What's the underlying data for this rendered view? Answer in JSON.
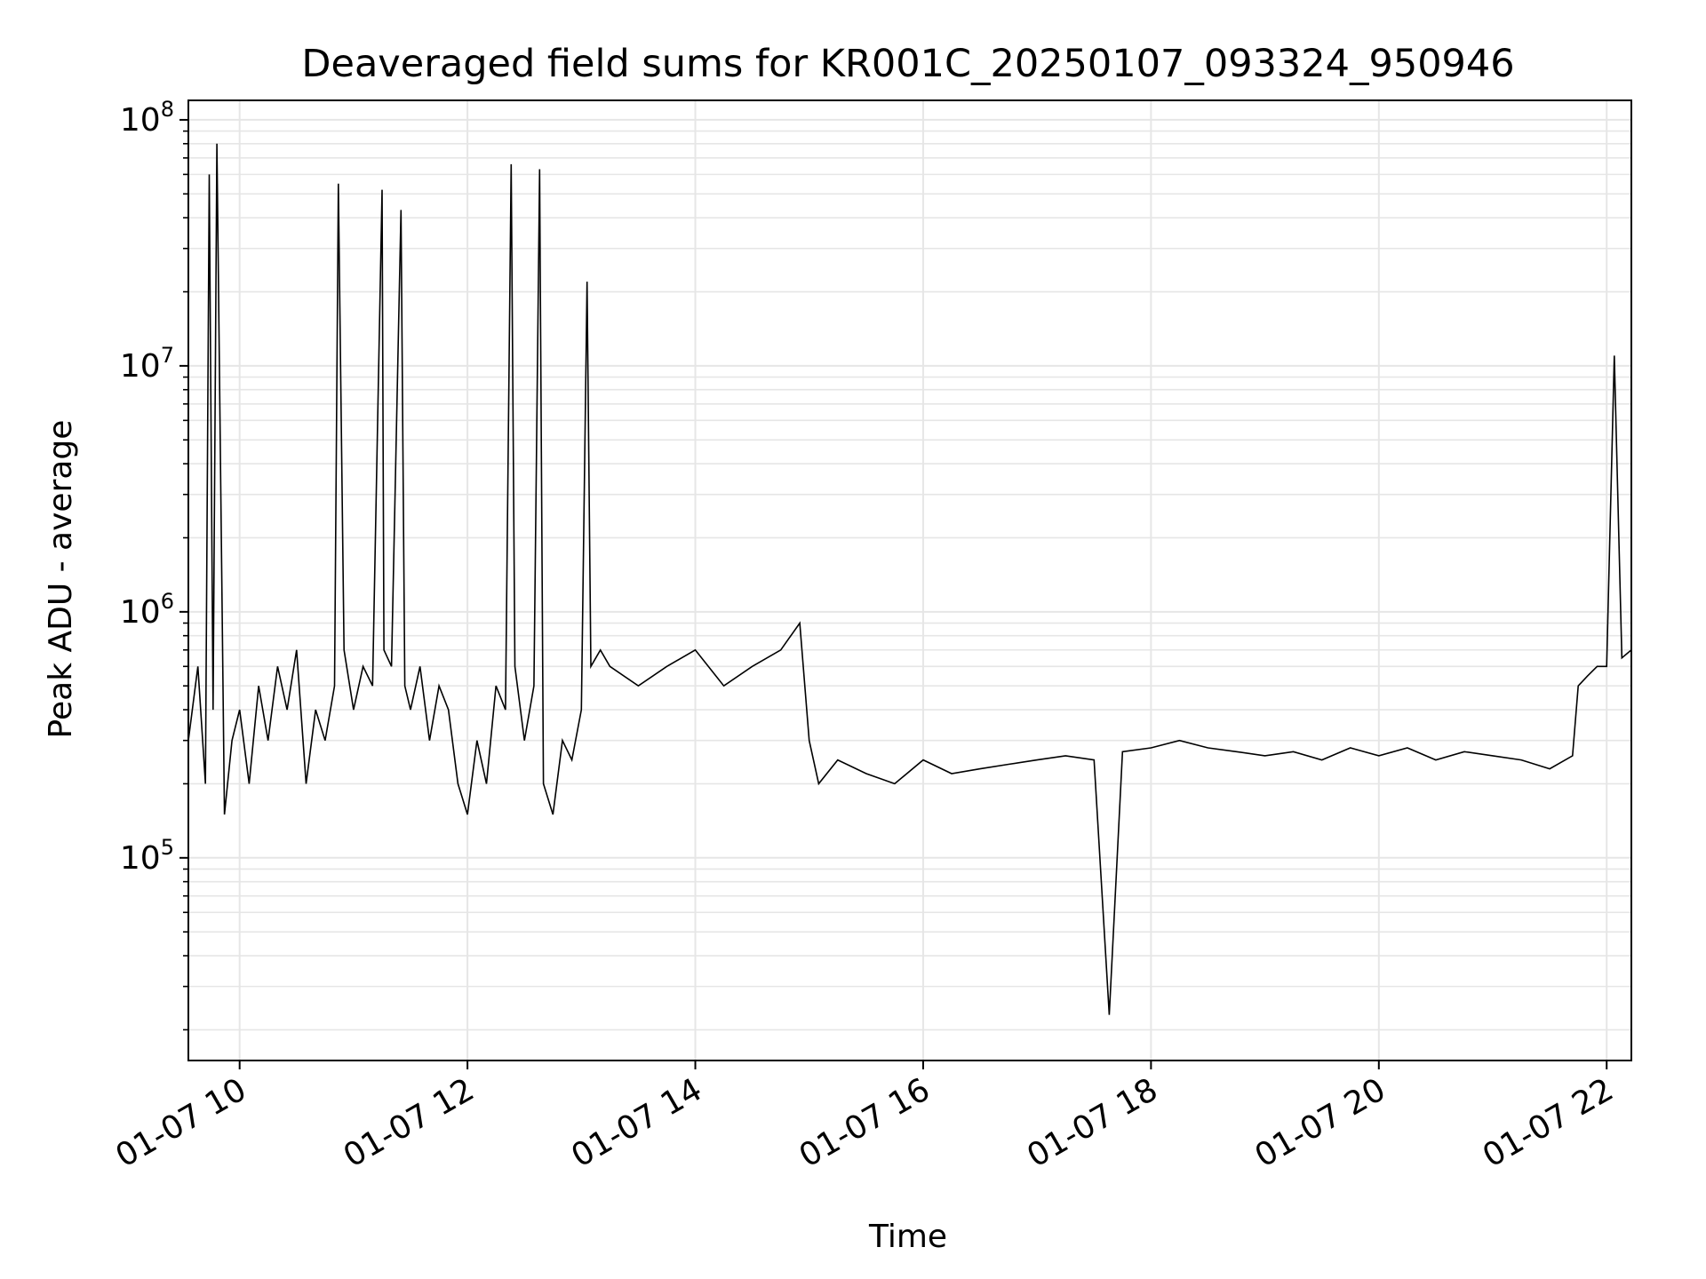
{
  "chart_data": {
    "type": "line",
    "title": "Deaveraged field sums for KR001C_20250107_093324_950946",
    "xlabel": "Time",
    "ylabel": "Peak ADU - average",
    "yscale": "log",
    "xlim": [
      "2025-01-07T09:33",
      "2025-01-07T22:13"
    ],
    "ylim": [
      15000,
      120000000
    ],
    "grid": true,
    "line_color": "#000000",
    "grid_color": "#e6e6e6",
    "x_ticks": [
      {
        "value": "2025-01-07T10:00",
        "label": "01-07 10"
      },
      {
        "value": "2025-01-07T12:00",
        "label": "01-07 12"
      },
      {
        "value": "2025-01-07T14:00",
        "label": "01-07 14"
      },
      {
        "value": "2025-01-07T16:00",
        "label": "01-07 16"
      },
      {
        "value": "2025-01-07T18:00",
        "label": "01-07 18"
      },
      {
        "value": "2025-01-07T20:00",
        "label": "01-07 20"
      },
      {
        "value": "2025-01-07T22:00",
        "label": "01-07 22"
      }
    ],
    "y_ticks": [
      {
        "value": 100000,
        "base": "10",
        "exp": "5"
      },
      {
        "value": 1000000,
        "base": "10",
        "exp": "6"
      },
      {
        "value": 10000000,
        "base": "10",
        "exp": "7"
      },
      {
        "value": 100000000,
        "base": "10",
        "exp": "8"
      }
    ],
    "series": [
      {
        "x": [
          "2025-01-07T09:33",
          "2025-01-07T09:38",
          "2025-01-07T09:42",
          "2025-01-07T09:44",
          "2025-01-07T09:46",
          "2025-01-07T09:48",
          "2025-01-07T09:52",
          "2025-01-07T09:56",
          "2025-01-07T10:00",
          "2025-01-07T10:05",
          "2025-01-07T10:10",
          "2025-01-07T10:15",
          "2025-01-07T10:20",
          "2025-01-07T10:25",
          "2025-01-07T10:30",
          "2025-01-07T10:35",
          "2025-01-07T10:40",
          "2025-01-07T10:45",
          "2025-01-07T10:50",
          "2025-01-07T10:52",
          "2025-01-07T10:55",
          "2025-01-07T11:00",
          "2025-01-07T11:05",
          "2025-01-07T11:10",
          "2025-01-07T11:15",
          "2025-01-07T11:16",
          "2025-01-07T11:20",
          "2025-01-07T11:25",
          "2025-01-07T11:27",
          "2025-01-07T11:30",
          "2025-01-07T11:35",
          "2025-01-07T11:40",
          "2025-01-07T11:45",
          "2025-01-07T11:50",
          "2025-01-07T11:55",
          "2025-01-07T12:00",
          "2025-01-07T12:05",
          "2025-01-07T12:10",
          "2025-01-07T12:15",
          "2025-01-07T12:20",
          "2025-01-07T12:23",
          "2025-01-07T12:25",
          "2025-01-07T12:30",
          "2025-01-07T12:35",
          "2025-01-07T12:38",
          "2025-01-07T12:40",
          "2025-01-07T12:45",
          "2025-01-07T12:50",
          "2025-01-07T12:55",
          "2025-01-07T13:00",
          "2025-01-07T13:03",
          "2025-01-07T13:05",
          "2025-01-07T13:10",
          "2025-01-07T13:15",
          "2025-01-07T13:30",
          "2025-01-07T13:45",
          "2025-01-07T14:00",
          "2025-01-07T14:15",
          "2025-01-07T14:30",
          "2025-01-07T14:45",
          "2025-01-07T14:55",
          "2025-01-07T15:00",
          "2025-01-07T15:05",
          "2025-01-07T15:15",
          "2025-01-07T15:30",
          "2025-01-07T15:45",
          "2025-01-07T16:00",
          "2025-01-07T16:15",
          "2025-01-07T16:30",
          "2025-01-07T16:45",
          "2025-01-07T17:00",
          "2025-01-07T17:15",
          "2025-01-07T17:30",
          "2025-01-07T17:38",
          "2025-01-07T17:45",
          "2025-01-07T18:00",
          "2025-01-07T18:15",
          "2025-01-07T18:30",
          "2025-01-07T18:45",
          "2025-01-07T19:00",
          "2025-01-07T19:15",
          "2025-01-07T19:30",
          "2025-01-07T19:45",
          "2025-01-07T20:00",
          "2025-01-07T20:15",
          "2025-01-07T20:30",
          "2025-01-07T20:45",
          "2025-01-07T21:00",
          "2025-01-07T21:15",
          "2025-01-07T21:30",
          "2025-01-07T21:42",
          "2025-01-07T21:45",
          "2025-01-07T21:50",
          "2025-01-07T21:55",
          "2025-01-07T22:00",
          "2025-01-07T22:04",
          "2025-01-07T22:08",
          "2025-01-07T22:13"
        ],
        "y": [
          300000,
          600000,
          200000,
          60000000,
          400000,
          80000000,
          150000,
          300000,
          400000,
          200000,
          500000,
          300000,
          600000,
          400000,
          700000,
          200000,
          400000,
          300000,
          500000,
          55000000,
          700000,
          400000,
          600000,
          500000,
          52000000,
          700000,
          600000,
          43000000,
          500000,
          400000,
          600000,
          300000,
          500000,
          400000,
          200000,
          150000,
          300000,
          200000,
          500000,
          400000,
          66000000,
          600000,
          300000,
          500000,
          63000000,
          200000,
          150000,
          300000,
          250000,
          400000,
          22000000,
          600000,
          700000,
          600000,
          500000,
          600000,
          700000,
          500000,
          600000,
          700000,
          900000,
          300000,
          200000,
          250000,
          220000,
          200000,
          250000,
          220000,
          230000,
          240000,
          250000,
          260000,
          250000,
          23000,
          270000,
          280000,
          300000,
          280000,
          270000,
          260000,
          270000,
          250000,
          280000,
          260000,
          280000,
          250000,
          270000,
          260000,
          250000,
          230000,
          260000,
          500000,
          550000,
          600000,
          600000,
          11000000,
          650000,
          700000
        ]
      }
    ]
  }
}
